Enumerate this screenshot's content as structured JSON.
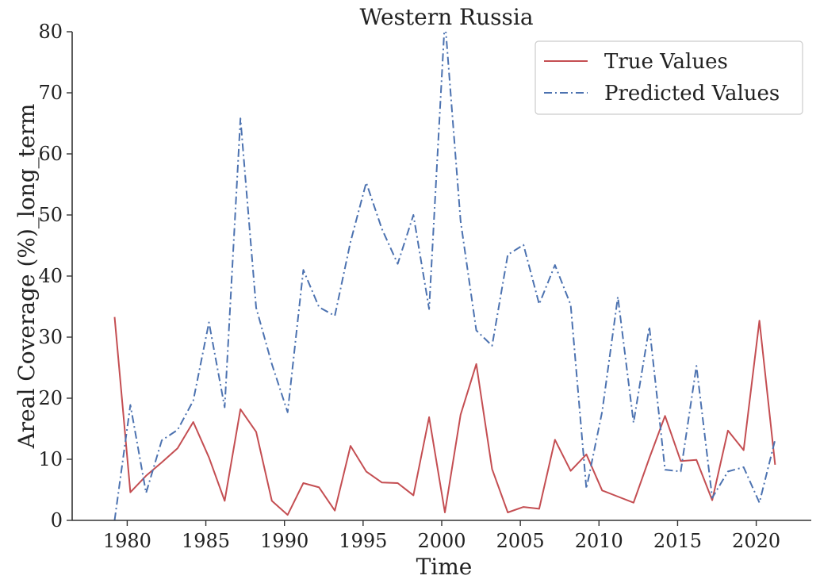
{
  "chart_data": {
    "type": "line",
    "title": "Western Russia",
    "xlabel": "Time",
    "ylabel": "Areal Coverage (%)_long_term",
    "xlim": [
      1976.5,
      2023.5
    ],
    "ylim": [
      0,
      80
    ],
    "xticks": [
      1980,
      1985,
      1990,
      1995,
      2000,
      2005,
      2010,
      2015,
      2020
    ],
    "yticks": [
      0,
      10,
      20,
      30,
      40,
      50,
      60,
      70,
      80
    ],
    "grid": false,
    "legend_position": "top-right",
    "x": [
      1979.2,
      1980.2,
      1981.2,
      1982.2,
      1983.2,
      1984.2,
      1985.2,
      1986.2,
      1987.2,
      1988.2,
      1989.2,
      1990.2,
      1991.2,
      1992.2,
      1993.2,
      1994.2,
      1995.2,
      1996.2,
      1997.2,
      1998.2,
      1999.2,
      2000.2,
      2001.2,
      2002.2,
      2003.2,
      2004.2,
      2005.2,
      2006.2,
      2007.2,
      2008.2,
      2009.2,
      2010.2,
      2011.2,
      2012.2,
      2013.2,
      2014.2,
      2015.2,
      2016.2,
      2017.2,
      2018.2,
      2019.2,
      2020.2,
      2021.2
    ],
    "series": [
      {
        "name": "True Values",
        "color": "#c44e52",
        "dash": "solid",
        "values": [
          33.3,
          4.6,
          7.3,
          9.5,
          11.8,
          16.1,
          10.3,
          3.2,
          18.2,
          14.5,
          3.2,
          0.9,
          6.1,
          5.4,
          1.6,
          12.2,
          8.0,
          6.2,
          6.1,
          4.1,
          16.9,
          1.3,
          17.3,
          25.6,
          8.4,
          1.3,
          2.2,
          1.9,
          13.2,
          8.1,
          10.8,
          4.9,
          3.9,
          2.9,
          10.2,
          17.1,
          9.7,
          9.9,
          3.3,
          14.7,
          11.5,
          32.7,
          9.1
        ]
      },
      {
        "name": "Predicted Values",
        "color": "#4c72b0",
        "dash": "dashdot",
        "values": [
          0.0,
          18.9,
          4.5,
          13.1,
          14.8,
          19.6,
          32.4,
          18.5,
          65.8,
          34.8,
          25.6,
          17.7,
          41.0,
          34.9,
          33.5,
          45.6,
          55.3,
          47.7,
          42.0,
          50.0,
          34.6,
          82.0,
          49.0,
          31.1,
          28.6,
          43.5,
          45.1,
          35.4,
          41.8,
          35.3,
          5.2,
          17.8,
          36.6,
          16.0,
          31.7,
          8.3,
          8.0,
          25.3,
          3.7,
          8.0,
          8.7,
          2.9,
          13.2
        ]
      }
    ]
  }
}
